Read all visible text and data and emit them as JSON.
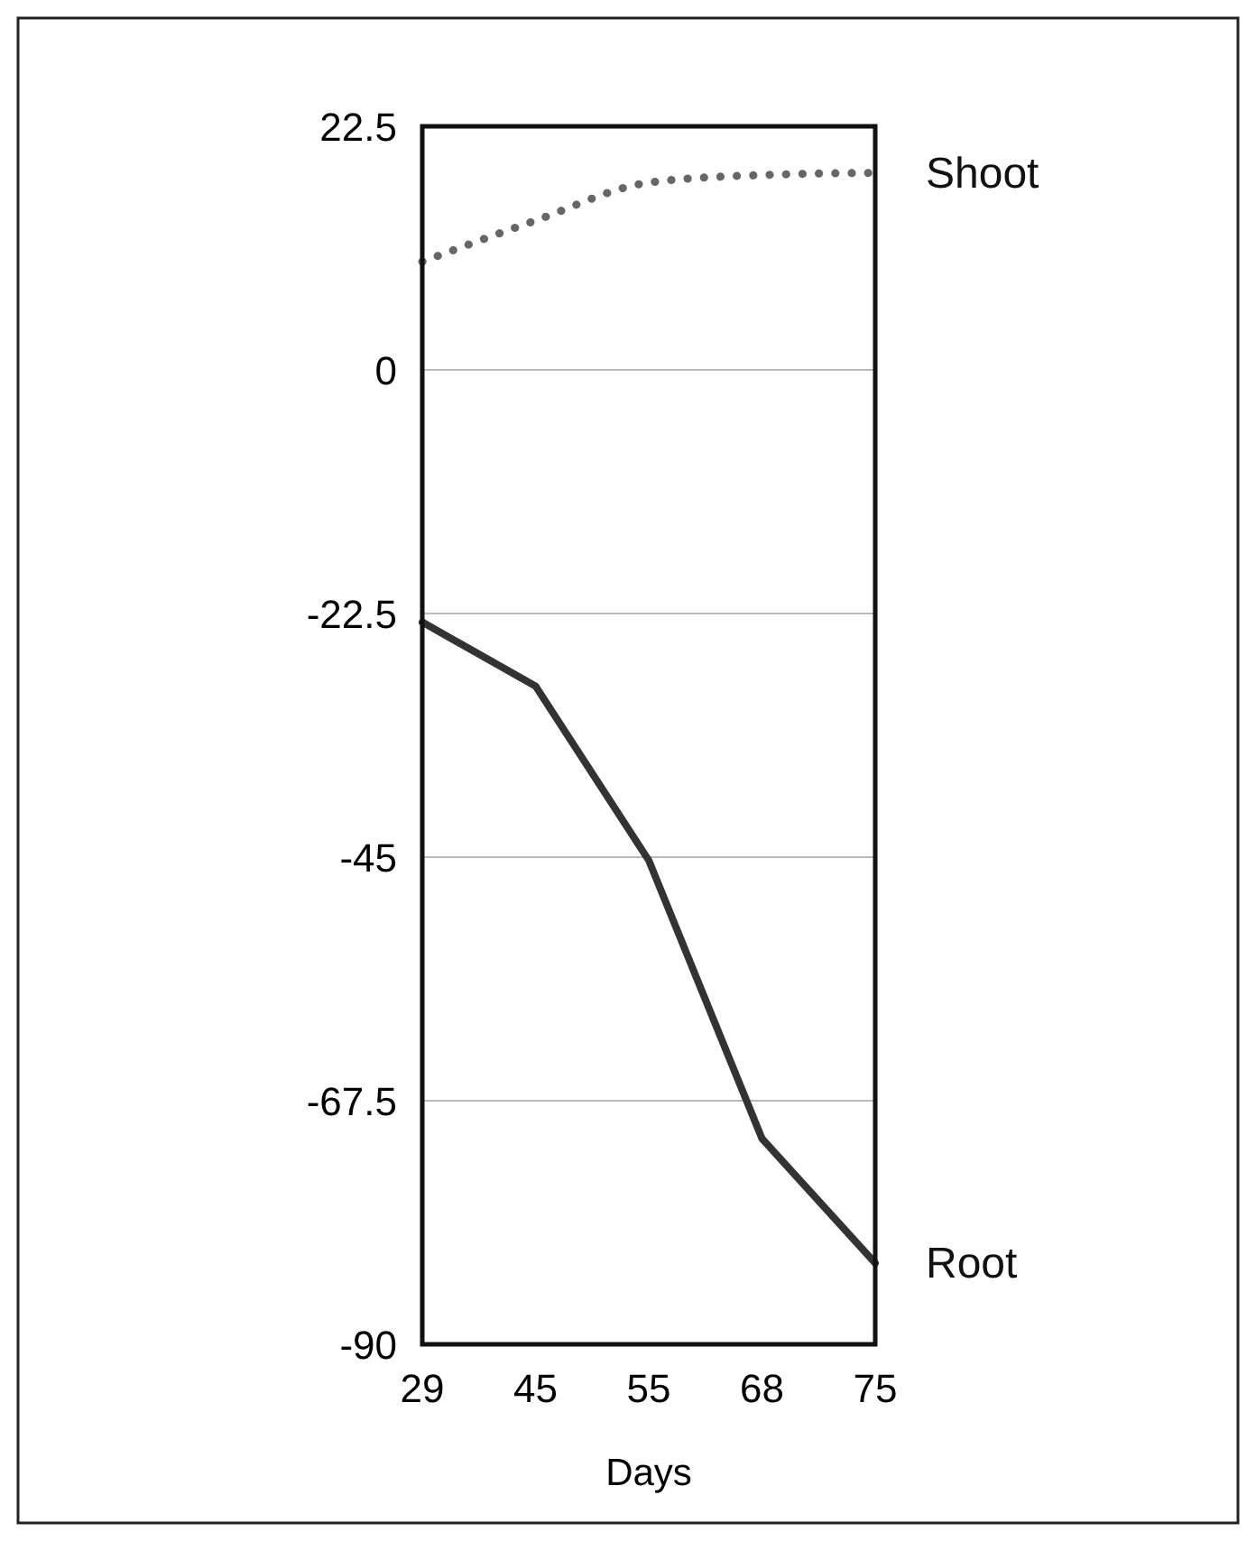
{
  "chart_data": {
    "type": "line",
    "xlabel": "Days",
    "categories": [
      "29",
      "45",
      "55",
      "68",
      "75"
    ],
    "series": [
      {
        "name": "Shoot",
        "color": "#666666",
        "line_style": "dotted",
        "values": [
          10,
          13.8,
          17.3,
          18,
          18.2
        ]
      },
      {
        "name": "Root",
        "color": "#333333",
        "line_style": "solid",
        "values": [
          -23.3,
          -29.2,
          -45.3,
          -71,
          -82.5
        ]
      }
    ],
    "ylim": [
      -90,
      22.5
    ],
    "yticks": [
      -90,
      -67.5,
      -45,
      -22.5,
      0,
      22.5
    ],
    "grid": "y"
  }
}
